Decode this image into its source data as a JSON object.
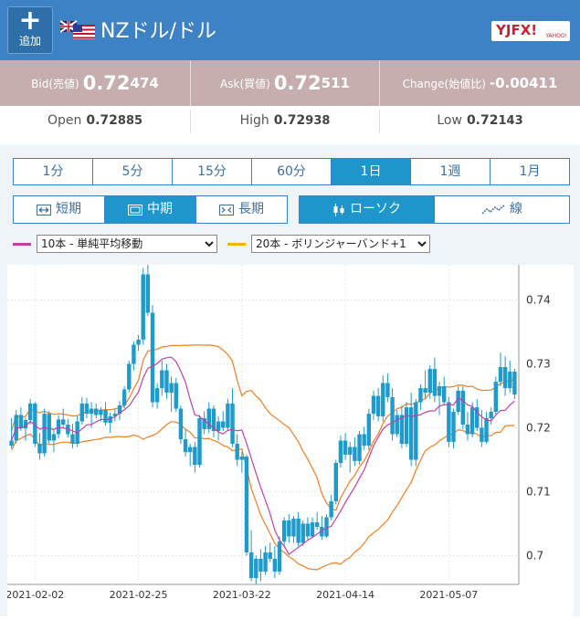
{
  "header": {
    "add_icon": "plus-icon",
    "add_label": "追加",
    "flag_icon": "nz-us-flag-icon",
    "pair": "NZドル/ドル",
    "logo_text": "YJFX!",
    "logo_sub": "YAHOO!"
  },
  "quotes": {
    "bid_label": "Bid(売値)",
    "bid_big": "0.72",
    "bid_small": "474",
    "ask_label": "Ask(買値)",
    "ask_big": "0.72",
    "ask_small": "511",
    "change_label": "Change(始値比)",
    "change_value": "-0.00411",
    "open_label": "Open",
    "open_big": "0.72",
    "open_small": "885",
    "high_label": "High",
    "high_big": "0.72",
    "high_small": "938",
    "low_label": "Low",
    "low_big": "0.72",
    "low_small": "143"
  },
  "timeframes": [
    "1分",
    "5分",
    "15分",
    "60分",
    "1日",
    "1週",
    "1月"
  ],
  "timeframe_selected": "1日",
  "periods": [
    "短期",
    "中期",
    "長期"
  ],
  "period_selected": "中期",
  "chart_types": [
    "ローソク",
    "線"
  ],
  "chart_type_selected": "ローソク",
  "indicators": {
    "ma_label": "10本 - 単純平均移動",
    "ma_color": "#c23fa8",
    "bb_label": "20本 - ボリンジャーバンド+1",
    "bb_color": "#f0b400"
  },
  "chart_data": {
    "type": "candlestick",
    "ylim": [
      0.6955,
      0.7455
    ],
    "yticks": [
      0.7,
      0.71,
      0.72,
      0.73,
      0.74
    ],
    "ytick_labels": [
      "0.7",
      "0.71",
      "0.72",
      "0.73",
      "0.74"
    ],
    "xtick_labels": [
      "2021-02-02",
      "2021-02-25",
      "2021-03-22",
      "2021-04-14",
      "2021-05-07"
    ],
    "xtick_index": [
      5,
      27,
      49,
      71,
      93
    ],
    "colors": {
      "candle": "#1e9acb",
      "ma": "#c23fa8",
      "bb": "#f07f1e"
    },
    "ohlc": [
      [
        0.7172,
        0.7215,
        0.7168,
        0.718
      ],
      [
        0.718,
        0.7228,
        0.7176,
        0.722
      ],
      [
        0.722,
        0.7232,
        0.7195,
        0.7199
      ],
      [
        0.7199,
        0.7216,
        0.718,
        0.7212
      ],
      [
        0.7212,
        0.7245,
        0.7205,
        0.7238
      ],
      [
        0.7238,
        0.724,
        0.717,
        0.7175
      ],
      [
        0.7175,
        0.7192,
        0.715,
        0.716
      ],
      [
        0.716,
        0.723,
        0.7155,
        0.7222
      ],
      [
        0.7222,
        0.7226,
        0.7175,
        0.718
      ],
      [
        0.718,
        0.7198,
        0.7162,
        0.719
      ],
      [
        0.719,
        0.722,
        0.7183,
        0.7213
      ],
      [
        0.7213,
        0.723,
        0.72,
        0.7205
      ],
      [
        0.7205,
        0.7214,
        0.7185,
        0.719
      ],
      [
        0.719,
        0.7206,
        0.7168,
        0.7175
      ],
      [
        0.7175,
        0.7218,
        0.717,
        0.721
      ],
      [
        0.721,
        0.7248,
        0.7205,
        0.7238
      ],
      [
        0.7238,
        0.7247,
        0.7215,
        0.7222
      ],
      [
        0.7222,
        0.724,
        0.72,
        0.723
      ],
      [
        0.723,
        0.7238,
        0.7215,
        0.722
      ],
      [
        0.722,
        0.7232,
        0.721,
        0.7228
      ],
      [
        0.7228,
        0.724,
        0.7203,
        0.7208
      ],
      [
        0.7208,
        0.7224,
        0.7192,
        0.7218
      ],
      [
        0.7218,
        0.723,
        0.721,
        0.7222
      ],
      [
        0.7222,
        0.7242,
        0.7212,
        0.7235
      ],
      [
        0.7235,
        0.7265,
        0.723,
        0.726
      ],
      [
        0.726,
        0.7305,
        0.7255,
        0.73
      ],
      [
        0.73,
        0.7335,
        0.729,
        0.733
      ],
      [
        0.733,
        0.7345,
        0.732,
        0.7338
      ],
      [
        0.7338,
        0.745,
        0.733,
        0.744
      ],
      [
        0.744,
        0.7458,
        0.7375,
        0.738
      ],
      [
        0.738,
        0.7392,
        0.7232,
        0.724
      ],
      [
        0.724,
        0.727,
        0.723,
        0.7262
      ],
      [
        0.7262,
        0.7305,
        0.725,
        0.729
      ],
      [
        0.729,
        0.73,
        0.7245,
        0.7255
      ],
      [
        0.7255,
        0.728,
        0.7225,
        0.727
      ],
      [
        0.727,
        0.7278,
        0.7225,
        0.723
      ],
      [
        0.723,
        0.7235,
        0.7175,
        0.7182
      ],
      [
        0.7182,
        0.7198,
        0.7155,
        0.7162
      ],
      [
        0.7162,
        0.7175,
        0.714,
        0.717
      ],
      [
        0.717,
        0.7178,
        0.713,
        0.7142
      ],
      [
        0.7142,
        0.722,
        0.7138,
        0.7215
      ],
      [
        0.7215,
        0.7226,
        0.719,
        0.7198
      ],
      [
        0.7198,
        0.724,
        0.7192,
        0.723
      ],
      [
        0.723,
        0.7235,
        0.7185,
        0.7195
      ],
      [
        0.7195,
        0.7218,
        0.718,
        0.721
      ],
      [
        0.721,
        0.7226,
        0.7195,
        0.72
      ],
      [
        0.72,
        0.7245,
        0.7195,
        0.7238
      ],
      [
        0.7238,
        0.7262,
        0.717,
        0.7175
      ],
      [
        0.7175,
        0.719,
        0.714,
        0.715
      ],
      [
        0.715,
        0.7162,
        0.713,
        0.7155
      ],
      [
        0.7155,
        0.7158,
        0.7,
        0.7005
      ],
      [
        0.7005,
        0.704,
        0.696,
        0.6965
      ],
      [
        0.6965,
        0.7,
        0.6955,
        0.6995
      ],
      [
        0.6995,
        0.701,
        0.696,
        0.6975
      ],
      [
        0.6975,
        0.7015,
        0.697,
        0.7005
      ],
      [
        0.7005,
        0.702,
        0.699,
        0.6995
      ],
      [
        0.6995,
        0.7015,
        0.6965,
        0.6975
      ],
      [
        0.6975,
        0.703,
        0.697,
        0.7022
      ],
      [
        0.7022,
        0.706,
        0.7015,
        0.7055
      ],
      [
        0.7055,
        0.7065,
        0.702,
        0.703
      ],
      [
        0.703,
        0.7062,
        0.702,
        0.7058
      ],
      [
        0.7058,
        0.7068,
        0.7015,
        0.702
      ],
      [
        0.702,
        0.7055,
        0.7015,
        0.705
      ],
      [
        0.705,
        0.706,
        0.7025,
        0.703
      ],
      [
        0.703,
        0.706,
        0.7028,
        0.7052
      ],
      [
        0.7052,
        0.7068,
        0.704,
        0.7045
      ],
      [
        0.7045,
        0.7062,
        0.7025,
        0.703
      ],
      [
        0.703,
        0.7065,
        0.7028,
        0.706
      ],
      [
        0.706,
        0.7095,
        0.7055,
        0.7085
      ],
      [
        0.7085,
        0.715,
        0.708,
        0.7145
      ],
      [
        0.7145,
        0.7188,
        0.7138,
        0.718
      ],
      [
        0.718,
        0.7192,
        0.715,
        0.7158
      ],
      [
        0.7158,
        0.7178,
        0.713,
        0.717
      ],
      [
        0.717,
        0.7185,
        0.714,
        0.7148
      ],
      [
        0.7148,
        0.7195,
        0.7142,
        0.719
      ],
      [
        0.719,
        0.7202,
        0.7165,
        0.7172
      ],
      [
        0.7172,
        0.723,
        0.7165,
        0.7222
      ],
      [
        0.7222,
        0.7258,
        0.7212,
        0.725
      ],
      [
        0.725,
        0.7262,
        0.721,
        0.7218
      ],
      [
        0.7218,
        0.7282,
        0.721,
        0.727
      ],
      [
        0.727,
        0.7285,
        0.724,
        0.7248
      ],
      [
        0.7248,
        0.7262,
        0.718,
        0.719
      ],
      [
        0.719,
        0.7228,
        0.7185,
        0.722
      ],
      [
        0.722,
        0.7235,
        0.7168,
        0.7175
      ],
      [
        0.7175,
        0.724,
        0.717,
        0.7232
      ],
      [
        0.7232,
        0.7255,
        0.714,
        0.715
      ],
      [
        0.715,
        0.7245,
        0.714,
        0.724
      ],
      [
        0.724,
        0.7268,
        0.7228,
        0.7262
      ],
      [
        0.7262,
        0.729,
        0.7245,
        0.7255
      ],
      [
        0.7255,
        0.7298,
        0.7245,
        0.7292
      ],
      [
        0.7292,
        0.731,
        0.724,
        0.725
      ],
      [
        0.725,
        0.7272,
        0.722,
        0.7265
      ],
      [
        0.7265,
        0.728,
        0.7235,
        0.724
      ],
      [
        0.724,
        0.7248,
        0.717,
        0.7178
      ],
      [
        0.7178,
        0.723,
        0.7168,
        0.7225
      ],
      [
        0.7225,
        0.7265,
        0.722,
        0.7258
      ],
      [
        0.7258,
        0.7265,
        0.7198,
        0.7205
      ],
      [
        0.7205,
        0.7225,
        0.718,
        0.719
      ],
      [
        0.719,
        0.724,
        0.7185,
        0.7232
      ],
      [
        0.7232,
        0.7245,
        0.7195,
        0.72
      ],
      [
        0.72,
        0.7228,
        0.717,
        0.7178
      ],
      [
        0.7178,
        0.7225,
        0.7175,
        0.7215
      ],
      [
        0.7215,
        0.7232,
        0.7205,
        0.7225
      ],
      [
        0.7225,
        0.728,
        0.722,
        0.7272
      ],
      [
        0.7272,
        0.7318,
        0.7265,
        0.7295
      ],
      [
        0.7295,
        0.7312,
        0.725,
        0.7262
      ],
      [
        0.7262,
        0.7305,
        0.7255,
        0.7288
      ],
      [
        0.7288,
        0.7292,
        0.7245,
        0.7252
      ]
    ]
  }
}
